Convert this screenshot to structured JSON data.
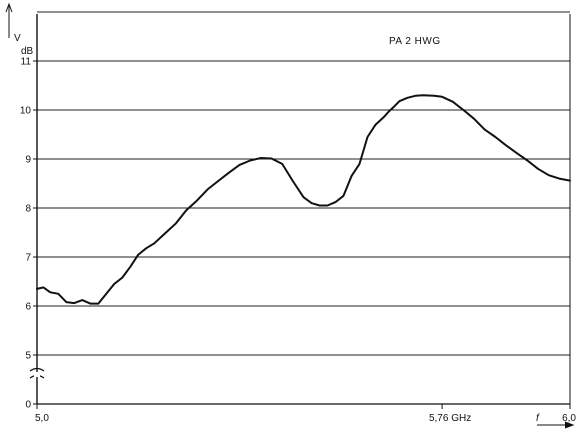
{
  "chart_data": {
    "type": "line",
    "title": "",
    "annotation": "PA 2 HWG",
    "ylabel_unit_v": "V",
    "ylabel_unit_db": "dB",
    "xlabel": "f",
    "x_ticks": [
      {
        "value": 5.0,
        "label": "5,0"
      },
      {
        "value": 5.76,
        "label": "5,76 GHz"
      },
      {
        "value": 6.0,
        "label": "6,0"
      }
    ],
    "y_ticks": [
      "0",
      "5",
      "6",
      "7",
      "8",
      "9",
      "10",
      "11"
    ],
    "y_break": "0-5",
    "xlim": [
      5.0,
      6.0
    ],
    "ylim": [
      5,
      12
    ],
    "grid": true,
    "legend": "none",
    "line_color": "#111111",
    "series": [
      {
        "x": [
          5.0,
          5.012,
          5.025,
          5.04,
          5.055,
          5.07,
          5.085,
          5.1,
          5.115,
          5.13,
          5.145,
          5.16,
          5.175,
          5.19,
          5.205,
          5.22,
          5.24,
          5.26,
          5.28,
          5.3,
          5.32,
          5.34,
          5.36,
          5.38,
          5.4,
          5.42,
          5.44,
          5.46,
          5.48,
          5.5,
          5.515,
          5.53,
          5.545,
          5.56,
          5.575,
          5.59,
          5.605,
          5.62,
          5.635,
          5.65,
          5.66,
          5.67,
          5.68,
          5.695,
          5.71,
          5.725,
          5.745,
          5.76,
          5.78,
          5.8,
          5.82,
          5.84,
          5.86,
          5.88,
          5.9,
          5.92,
          5.94,
          5.96,
          5.98,
          6.0
        ],
        "y": [
          6.35,
          6.38,
          6.28,
          6.25,
          6.08,
          6.06,
          6.12,
          6.05,
          6.05,
          6.25,
          6.45,
          6.58,
          6.8,
          7.05,
          7.18,
          7.28,
          7.48,
          7.68,
          7.95,
          8.15,
          8.38,
          8.55,
          8.72,
          8.88,
          8.97,
          9.02,
          9.01,
          8.9,
          8.55,
          8.22,
          8.1,
          8.05,
          8.05,
          8.12,
          8.25,
          8.65,
          8.9,
          9.45,
          9.7,
          9.85,
          9.97,
          10.07,
          10.18,
          10.25,
          10.29,
          10.3,
          10.29,
          10.27,
          10.17,
          10.0,
          9.82,
          9.6,
          9.45,
          9.28,
          9.12,
          8.97,
          8.8,
          8.67,
          8.6,
          8.56
        ]
      }
    ]
  }
}
